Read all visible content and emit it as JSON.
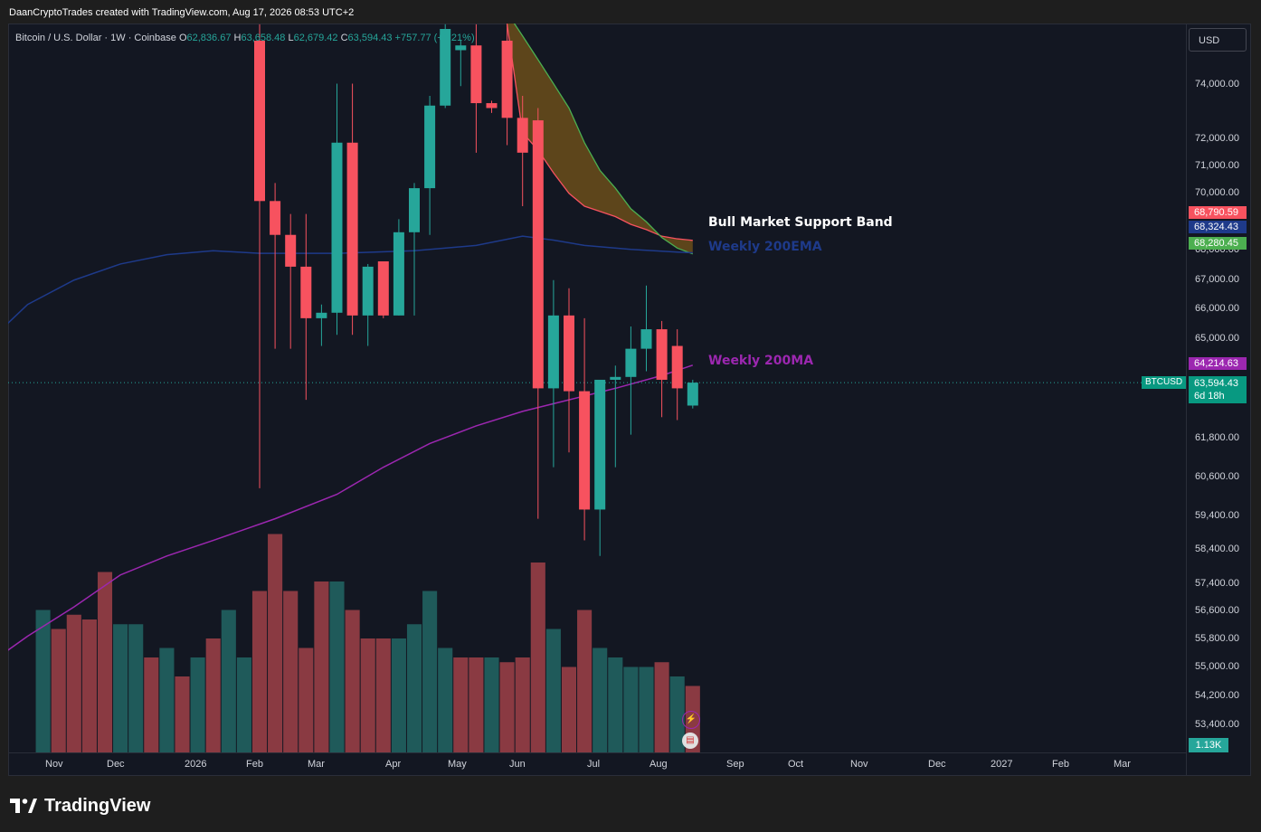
{
  "header": {
    "caption": "DaanCryptoTrades created with TradingView.com, Aug 17, 2026 08:53 UTC+2"
  },
  "legend": {
    "symbol": "Bitcoin / U.S. Dollar · 1W · Coinbase",
    "open_key": "O",
    "open": "62,836.67",
    "high_key": "H",
    "high": "63,658.48",
    "low_key": "L",
    "low": "62,679.42",
    "close_key": "C",
    "close": "63,594.43",
    "change": "+757.77 (+1.21%)"
  },
  "currency_button": "USD",
  "price_axis": [
    "74,000.00",
    "72,000.00",
    "71,000.00",
    "70,000.00",
    "68,000.00",
    "67,000.00",
    "66,000.00",
    "65,000.00",
    "61,800.00",
    "60,600.00",
    "59,400.00",
    "58,400.00",
    "57,400.00",
    "56,600.00",
    "55,800.00",
    "55,000.00",
    "54,200.00",
    "53,400.00"
  ],
  "time_axis": [
    "Nov",
    "Dec",
    "2026",
    "Feb",
    "Mar",
    "Apr",
    "May",
    "Jun",
    "Jul",
    "Aug",
    "Sep",
    "Oct",
    "Nov",
    "Dec",
    "2027",
    "Feb",
    "Mar"
  ],
  "price_tags": {
    "support_upper": "68,790.59",
    "ema200": "68,324.43",
    "support_lower": "68,280.45",
    "ma200": "64,214.63",
    "symbol_tag": "BTCUSD",
    "current": "63,594.43",
    "countdown": "6d 18h",
    "volume": "1.13K"
  },
  "annotations": {
    "band": "Bull Market Support Band",
    "ema": "Weekly 200EMA",
    "ma": "Weekly 200MA"
  },
  "colors": {
    "up": "#26a69a",
    "down": "#f7525f",
    "ema200": "#1e3a8a",
    "ma200": "#9c27b0",
    "band_upper": "#f7525f",
    "band_lower": "#4caf50",
    "band_fill": "#6b4e1a",
    "background": "#131722"
  },
  "footer": {
    "brand": "TradingView"
  },
  "chart_data": {
    "type": "candlestick",
    "interval": "1W",
    "price_scale": "log",
    "ylim": [
      52700,
      76000
    ],
    "candles": [
      {
        "o": 76800,
        "h": 77500,
        "l": 60000,
        "c": 70300
      },
      {
        "o": 70300,
        "h": 71000,
        "l": 64800,
        "c": 69000
      },
      {
        "o": 69000,
        "h": 69800,
        "l": 64800,
        "c": 67800
      },
      {
        "o": 67800,
        "h": 69800,
        "l": 63000,
        "c": 65900
      },
      {
        "o": 65900,
        "h": 66400,
        "l": 64900,
        "c": 66100
      },
      {
        "o": 66100,
        "h": 75000,
        "l": 65300,
        "c": 72600
      },
      {
        "o": 72600,
        "h": 75000,
        "l": 65300,
        "c": 66000
      },
      {
        "o": 66000,
        "h": 67900,
        "l": 64900,
        "c": 67800
      },
      {
        "o": 68000,
        "h": 68000,
        "l": 65900,
        "c": 66000
      },
      {
        "o": 66000,
        "h": 69600,
        "l": 66000,
        "c": 69100
      },
      {
        "o": 69100,
        "h": 71000,
        "l": 66000,
        "c": 70800
      },
      {
        "o": 70800,
        "h": 74500,
        "l": 69000,
        "c": 74100
      },
      {
        "o": 74100,
        "h": 77500,
        "l": 74000,
        "c": 77300
      },
      {
        "o": 76400,
        "h": 76800,
        "l": 74900,
        "c": 76600
      },
      {
        "o": 76600,
        "h": 77500,
        "l": 72200,
        "c": 74200
      },
      {
        "o": 74200,
        "h": 74300,
        "l": 73800,
        "c": 74000
      },
      {
        "o": 76800,
        "h": 77600,
        "l": 72500,
        "c": 73600
      },
      {
        "o": 73600,
        "h": 74500,
        "l": 70100,
        "c": 72200
      },
      {
        "o": 73500,
        "h": 74000,
        "l": 59000,
        "c": 63400
      },
      {
        "o": 63400,
        "h": 67300,
        "l": 60700,
        "c": 66000
      },
      {
        "o": 66000,
        "h": 67000,
        "l": 61200,
        "c": 63300
      },
      {
        "o": 63300,
        "h": 65900,
        "l": 58300,
        "c": 59300
      },
      {
        "o": 59300,
        "h": 63600,
        "l": 57800,
        "c": 63700
      },
      {
        "o": 63700,
        "h": 64200,
        "l": 60700,
        "c": 63800
      },
      {
        "o": 63800,
        "h": 65600,
        "l": 61800,
        "c": 64800
      },
      {
        "o": 64800,
        "h": 67100,
        "l": 64000,
        "c": 65500
      },
      {
        "o": 65500,
        "h": 65800,
        "l": 62400,
        "c": 63700
      },
      {
        "o": 64900,
        "h": 65500,
        "l": 62300,
        "c": 63400
      },
      {
        "o": 62800,
        "h": 63700,
        "l": 62700,
        "c": 63600
      }
    ],
    "volume": [
      {
        "v": 1.5,
        "d": false
      },
      {
        "v": 1.3,
        "d": true
      },
      {
        "v": 1.45,
        "d": true
      },
      {
        "v": 1.4,
        "d": true
      },
      {
        "v": 1.9,
        "d": true
      },
      {
        "v": 1.35,
        "d": false
      },
      {
        "v": 1.35,
        "d": false
      },
      {
        "v": 1.0,
        "d": true
      },
      {
        "v": 1.1,
        "d": false
      },
      {
        "v": 0.8,
        "d": true
      },
      {
        "v": 1.0,
        "d": false
      },
      {
        "v": 1.2,
        "d": true
      },
      {
        "v": 1.5,
        "d": false
      },
      {
        "v": 1.0,
        "d": false
      },
      {
        "v": 1.7,
        "d": true
      },
      {
        "v": 2.3,
        "d": true
      },
      {
        "v": 1.7,
        "d": true
      },
      {
        "v": 1.1,
        "d": true
      },
      {
        "v": 1.8,
        "d": true
      },
      {
        "v": 1.8,
        "d": false
      },
      {
        "v": 1.5,
        "d": true
      },
      {
        "v": 1.2,
        "d": true
      },
      {
        "v": 1.2,
        "d": true
      },
      {
        "v": 1.2,
        "d": false
      },
      {
        "v": 1.35,
        "d": false
      },
      {
        "v": 1.7,
        "d": false
      },
      {
        "v": 1.1,
        "d": false
      },
      {
        "v": 1.0,
        "d": true
      },
      {
        "v": 1.0,
        "d": true
      },
      {
        "v": 1.0,
        "d": false
      },
      {
        "v": 0.95,
        "d": true
      },
      {
        "v": 1.0,
        "d": true
      },
      {
        "v": 2.0,
        "d": true
      },
      {
        "v": 1.3,
        "d": false
      },
      {
        "v": 0.9,
        "d": true
      },
      {
        "v": 1.5,
        "d": true
      },
      {
        "v": 1.1,
        "d": false
      },
      {
        "v": 1.0,
        "d": false
      },
      {
        "v": 0.9,
        "d": false
      },
      {
        "v": 0.9,
        "d": false
      },
      {
        "v": 0.95,
        "d": true
      },
      {
        "v": 0.8,
        "d": false
      },
      {
        "v": 0.7,
        "d": true
      }
    ],
    "ema200": [
      [
        -18,
        64800
      ],
      [
        -15,
        66400
      ],
      [
        -12,
        67300
      ],
      [
        -9,
        67900
      ],
      [
        -6,
        68250
      ],
      [
        -3,
        68400
      ],
      [
        0,
        68300
      ],
      [
        5,
        68300
      ],
      [
        10,
        68400
      ],
      [
        14,
        68600
      ],
      [
        17,
        68950
      ],
      [
        19,
        68800
      ],
      [
        21,
        68600
      ],
      [
        24,
        68450
      ],
      [
        27,
        68350
      ],
      [
        28,
        68324.43
      ]
    ],
    "ma200": [
      [
        -18,
        54300
      ],
      [
        -15,
        55300
      ],
      [
        -12,
        56200
      ],
      [
        -9,
        57200
      ],
      [
        -6,
        57800
      ],
      [
        -3,
        58300
      ],
      [
        1,
        59000
      ],
      [
        5,
        59800
      ],
      [
        8,
        60700
      ],
      [
        11,
        61500
      ],
      [
        14,
        62100
      ],
      [
        17,
        62600
      ],
      [
        20,
        63000
      ],
      [
        23,
        63400
      ],
      [
        26,
        63850
      ],
      [
        28,
        64214.63
      ]
    ],
    "band_upper": [
      [
        16,
        77500
      ],
      [
        17,
        73000
      ],
      [
        18,
        72300
      ],
      [
        19,
        71400
      ],
      [
        20,
        70600
      ],
      [
        21,
        70100
      ],
      [
        22,
        69900
      ],
      [
        23,
        69700
      ],
      [
        24,
        69400
      ],
      [
        25,
        69200
      ],
      [
        26,
        68950
      ],
      [
        27,
        68850
      ],
      [
        28,
        68790.59
      ]
    ],
    "band_lower": [
      [
        16,
        78000
      ],
      [
        17,
        77000
      ],
      [
        18,
        76000
      ],
      [
        19,
        75000
      ],
      [
        20,
        74000
      ],
      [
        21,
        72600
      ],
      [
        22,
        71500
      ],
      [
        23,
        70800
      ],
      [
        24,
        70000
      ],
      [
        25,
        69500
      ],
      [
        26,
        68900
      ],
      [
        27,
        68500
      ],
      [
        28,
        68280.45
      ]
    ]
  }
}
